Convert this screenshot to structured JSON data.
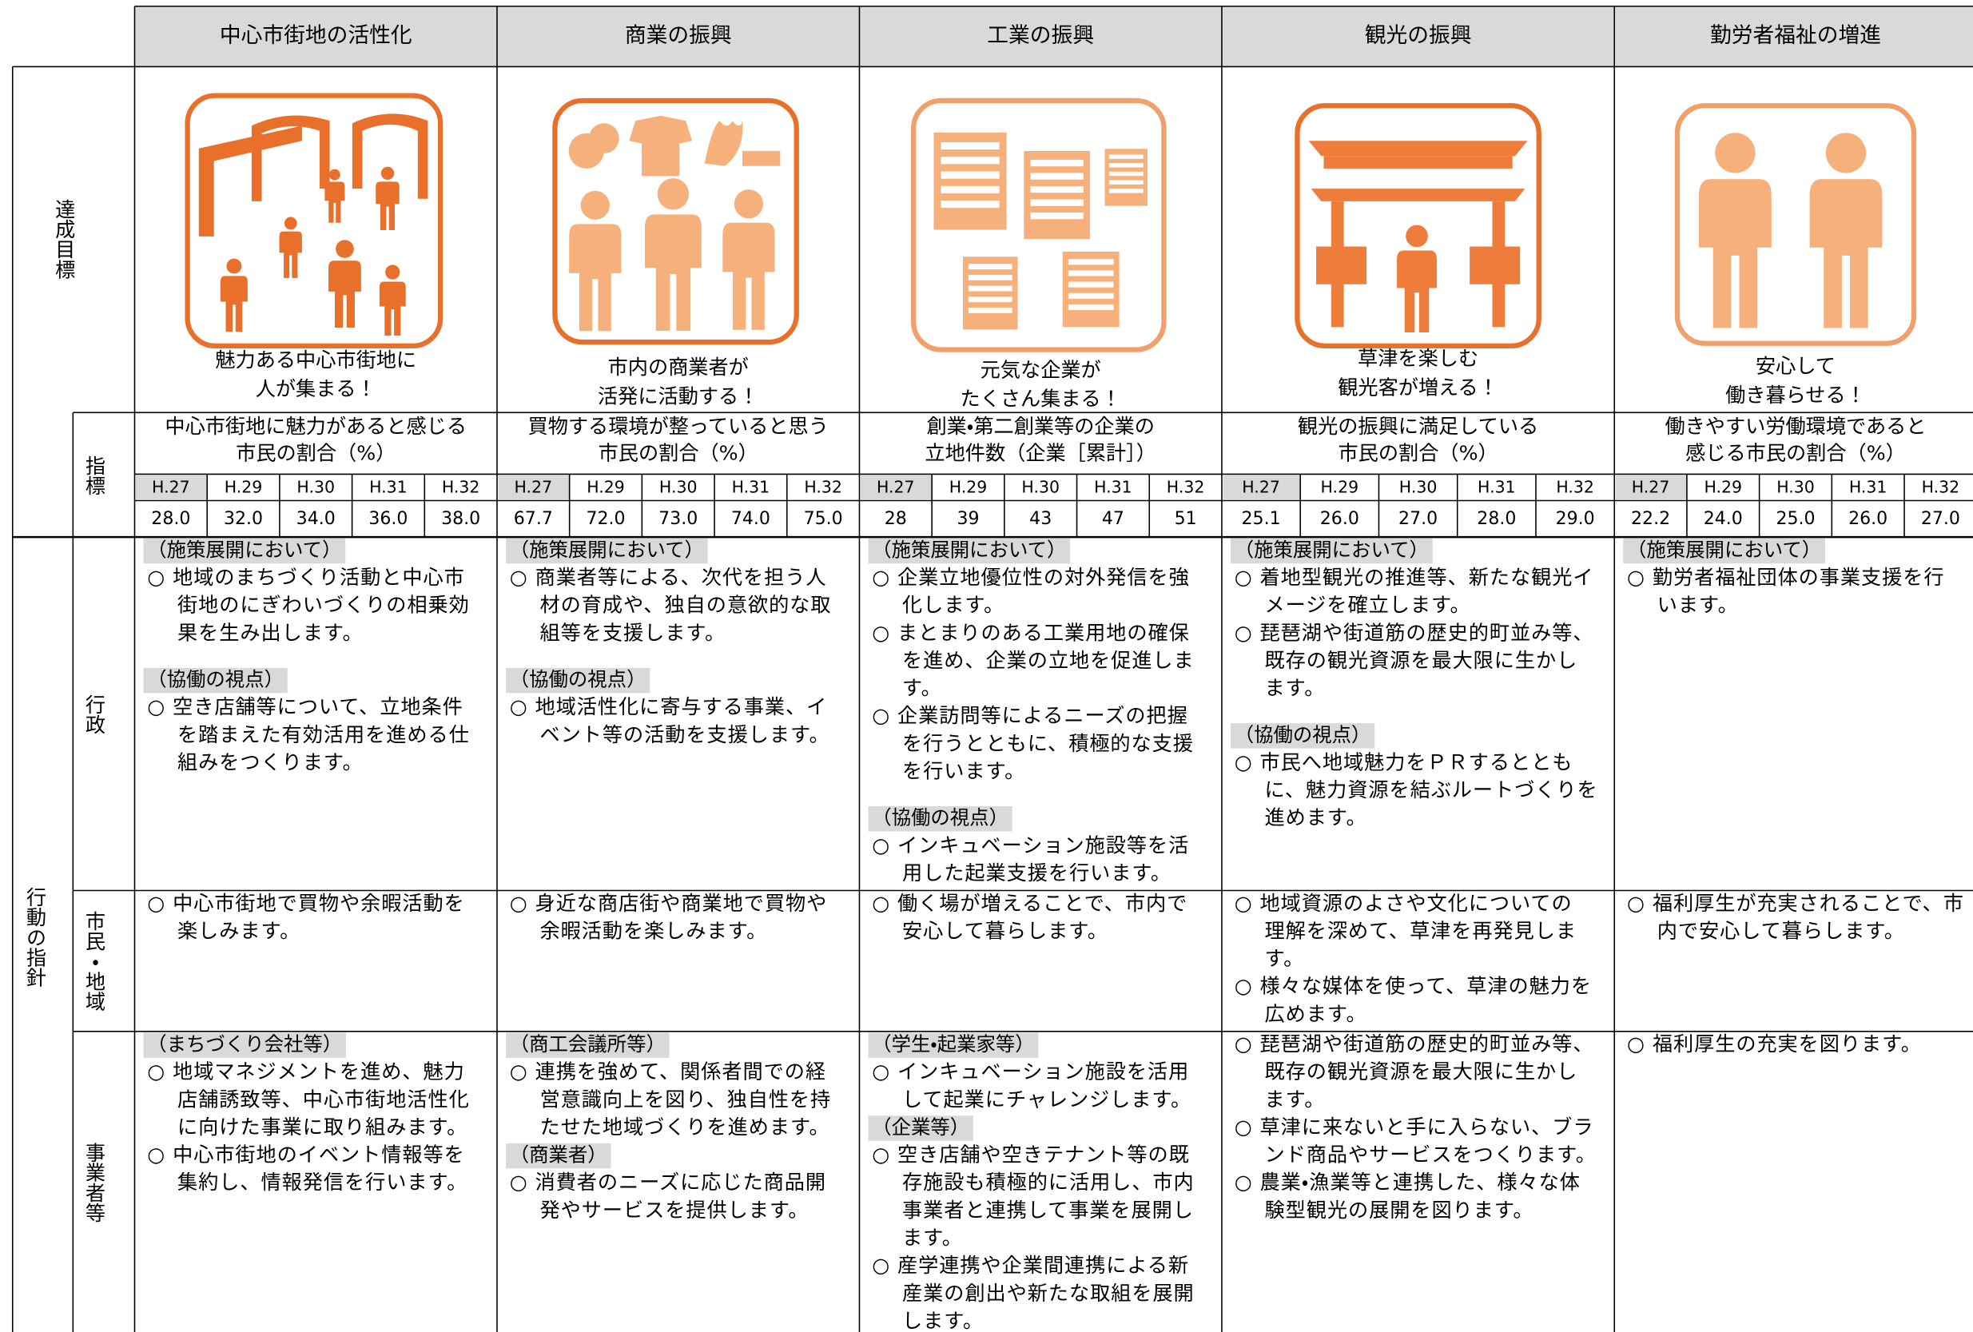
{
  "header": {
    "row_labels": {
      "goal": "達成目標",
      "indicator": "指標",
      "action": "行動の指針",
      "administration": "行政",
      "citizens": "市民・地域",
      "businesses": "事業者等"
    }
  },
  "columns": [
    {
      "title": "中心市街地の活性化",
      "goal_caption": [
        "魅力ある中心市街地に",
        "人が集まる！"
      ],
      "indicator": {
        "title": [
          "中心市街地に魅力があると感じる",
          "市民の割合（%）"
        ],
        "years": [
          "H.27",
          "H.29",
          "H.30",
          "H.31",
          "H.32"
        ],
        "values": [
          "28.0",
          "32.0",
          "34.0",
          "36.0",
          "38.0"
        ]
      },
      "administration": [
        {
          "heading": "（施策展開において）",
          "items": [
            [
              "○ 地域のまちづくり活動と中心市",
              "街地のにぎわいづくりの相乗効",
              "果を生み出します。"
            ]
          ]
        },
        {
          "heading": "（協働の視点）",
          "items": [
            [
              "○ 空き店舗等について、立地条件",
              "を踏まえた有効活用を進める仕",
              "組みをつくります。"
            ]
          ]
        }
      ],
      "citizens": [
        {
          "items": [
            [
              "○ 中心市街地で買物や余暇活動を",
              "楽しみます。"
            ]
          ]
        }
      ],
      "businesses": [
        {
          "heading": "（まちづくり会社等）",
          "items": [
            [
              "○ 地域マネジメントを進め、魅力",
              "店舗誘致等、中心市街地活性化",
              "に向けた事業に取り組みます。"
            ],
            [
              "○ 中心市街地のイベント情報等を",
              "集約し、情報発信を行います。"
            ]
          ]
        }
      ]
    },
    {
      "title": "商業の振興",
      "goal_caption": [
        "市内の商業者が",
        "活発に活動する！"
      ],
      "indicator": {
        "title": [
          "買物する環境が整っていると思う",
          "市民の割合（%）"
        ],
        "years": [
          "H.27",
          "H.29",
          "H.30",
          "H.31",
          "H.32"
        ],
        "values": [
          "67.7",
          "72.0",
          "73.0",
          "74.0",
          "75.0"
        ]
      },
      "administration": [
        {
          "heading": "（施策展開において）",
          "items": [
            [
              "○ 商業者等による、次代を担う人",
              "材の育成や、独自の意欲的な取",
              "組等を支援します。"
            ]
          ]
        },
        {
          "heading": "（協働の視点）",
          "items": [
            [
              "○ 地域活性化に寄与する事業、イ",
              "ベント等の活動を支援します。"
            ]
          ]
        }
      ],
      "citizens": [
        {
          "items": [
            [
              "○ 身近な商店街や商業地で買物や",
              "余暇活動を楽しみます。"
            ]
          ]
        }
      ],
      "businesses": [
        {
          "heading": "（商工会議所等）",
          "items": [
            [
              "○ 連携を強めて、関係者間での経",
              "営意識向上を図り、独自性を持",
              "たせた地域づくりを進めます。"
            ]
          ]
        },
        {
          "heading": "（商業者）",
          "items": [
            [
              "○ 消費者のニーズに応じた商品開",
              "発やサービスを提供します。"
            ]
          ]
        }
      ]
    },
    {
      "title": "工業の振興",
      "goal_caption": [
        "元気な企業が",
        "たくさん集まる！"
      ],
      "indicator": {
        "title": [
          "創業・第二創業等の企業の",
          "立地件数（企業［累計］）"
        ],
        "years": [
          "H.27",
          "H.29",
          "H.30",
          "H.31",
          "H.32"
        ],
        "values": [
          "28",
          "39",
          "43",
          "47",
          "51"
        ]
      },
      "administration": [
        {
          "heading": "（施策展開において）",
          "items": [
            [
              "○ 企業立地優位性の対外発信を強",
              "化します。"
            ],
            [
              "○ まとまりのある工業用地の確保",
              "を進め、企業の立地を促進しま",
              "す。"
            ],
            [
              "○ 企業訪問等によるニーズの把握",
              "を行うとともに、積極的な支援",
              "を行います。"
            ]
          ]
        },
        {
          "heading": "（協働の視点）",
          "items": [
            [
              "○ インキュベーション施設等を活",
              "用した起業支援を行います。"
            ]
          ]
        }
      ],
      "citizens": [
        {
          "items": [
            [
              "○ 働く場が増えることで、市内で",
              "安心して暮らします。"
            ]
          ]
        }
      ],
      "businesses": [
        {
          "heading": "（学生・起業家等）",
          "items": [
            [
              "○ インキュベーション施設を活用",
              "して起業にチャレンジします。"
            ]
          ]
        },
        {
          "heading": "（企業等）",
          "items": [
            [
              "○ 空き店舗や空きテナント等の既",
              "存施設も積極的に活用し、市内",
              "事業者と連携して事業を展開し",
              "ます。"
            ],
            [
              "○ 産学連携や企業間連携による新",
              "産業の創出や新たな取組を展開",
              "します。"
            ]
          ]
        }
      ]
    },
    {
      "title": "観光の振興",
      "goal_caption": [
        "草津を楽しむ",
        "観光客が増える！"
      ],
      "indicator": {
        "title": [
          "観光の振興に満足している",
          "市民の割合（%）"
        ],
        "years": [
          "H.27",
          "H.29",
          "H.30",
          "H.31",
          "H.32"
        ],
        "values": [
          "25.1",
          "26.0",
          "27.0",
          "28.0",
          "29.0"
        ]
      },
      "administration": [
        {
          "heading": "（施策展開において）",
          "items": [
            [
              "○ 着地型観光の推進等、新たな観光イ",
              "メージを確立します。"
            ],
            [
              "○ 琵琶湖や街道筋の歴史的町並み等、",
              "既存の観光資源を最大限に生かし",
              "ます。"
            ]
          ]
        },
        {
          "heading": "（協働の視点）",
          "items": [
            [
              "○ 市民へ地域魅力をＰＲするととも",
              "に、魅力資源を結ぶルートづくりを",
              "進めます。"
            ]
          ]
        }
      ],
      "citizens": [
        {
          "items": [
            [
              "○ 地域資源のよさや文化についての",
              "理解を深めて、草津を再発見しま",
              "す。"
            ],
            [
              "○ 様々な媒体を使って、草津の魅力を",
              "広めます。"
            ]
          ]
        }
      ],
      "businesses": [
        {
          "items": [
            [
              "○ 琵琶湖や街道筋の歴史的町並み等、",
              "既存の観光資源を最大限に生かし",
              "ます。"
            ],
            [
              "○ 草津に来ないと手に入らない、ブラ",
              "ンド商品やサービスをつくります。"
            ],
            [
              "○ 農業・漁業等と連携した、様々な体",
              "験型観光の展開を図ります。"
            ]
          ]
        }
      ]
    },
    {
      "title": "勤労者福祉の増進",
      "goal_caption": [
        "安心して",
        "働き暮らせる！"
      ],
      "indicator": {
        "title": [
          "働きやすい労働環境であると",
          "感じる市民の割合（%）"
        ],
        "years": [
          "H.27",
          "H.29",
          "H.30",
          "H.31",
          "H.32"
        ],
        "values": [
          "22.2",
          "24.0",
          "25.0",
          "26.0",
          "27.0"
        ]
      },
      "administration": [
        {
          "heading": "（施策展開において）",
          "items": [
            [
              "○ 勤労者福祉団体の事業支援を行",
              "います。"
            ]
          ]
        }
      ],
      "citizens": [
        {
          "items": [
            [
              "○ 福利厚生が充実されることで、市",
              "内で安心して暮らします。"
            ]
          ]
        }
      ],
      "businesses": [
        {
          "items": [
            [
              "○ 福利厚生の充実を図ります。"
            ]
          ]
        }
      ]
    }
  ]
}
